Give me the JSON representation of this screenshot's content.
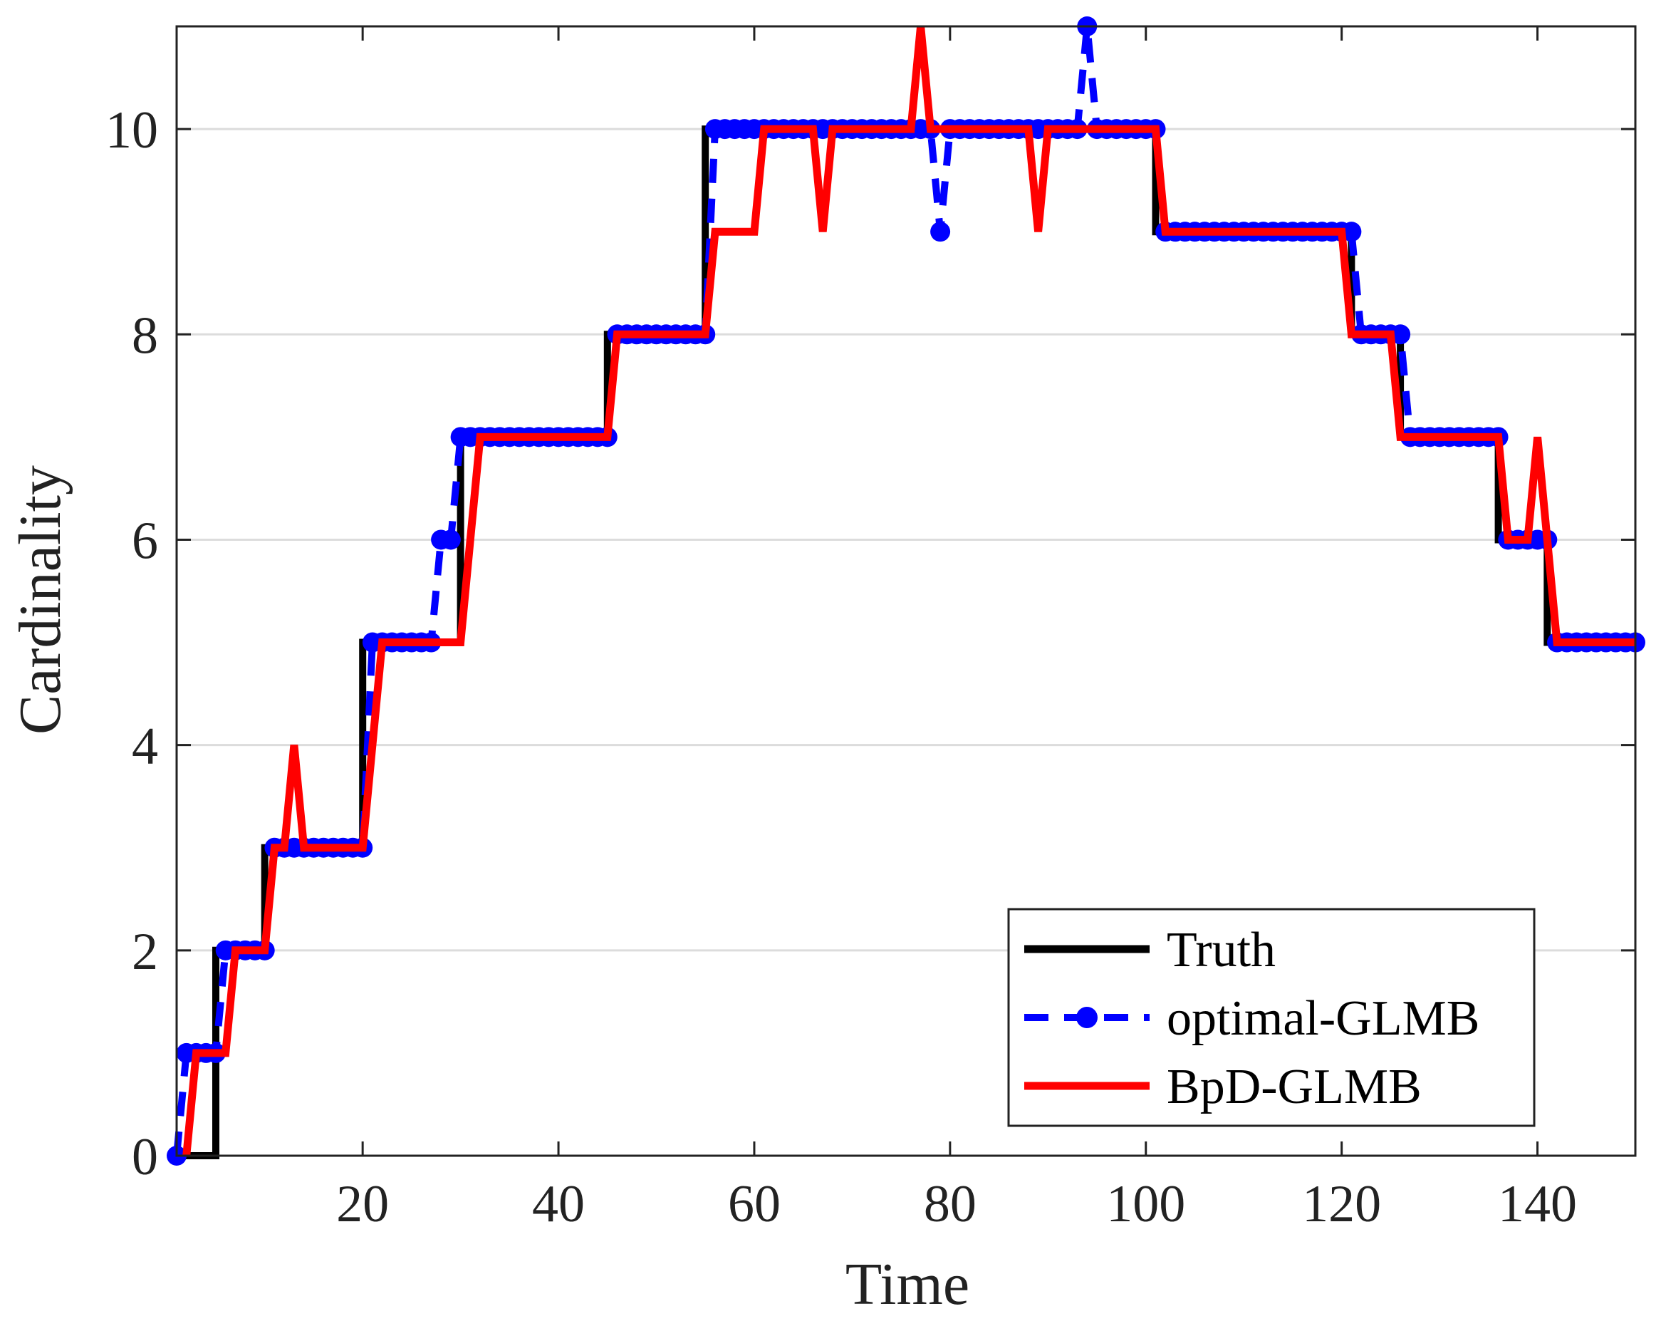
{
  "chart_data": {
    "type": "line",
    "title": "",
    "xlabel": "Time",
    "ylabel": "Cardinality",
    "xlim": [
      1,
      150
    ],
    "ylim": [
      0,
      11
    ],
    "xticks": [
      20,
      40,
      60,
      80,
      100,
      120,
      140
    ],
    "yticks": [
      0,
      2,
      4,
      6,
      8,
      10
    ],
    "grid": "horizontal",
    "legend_position": "bottom-right",
    "series": [
      {
        "name": "Truth",
        "color": "#000000",
        "style": "solid",
        "marker": "none",
        "x": [
          1,
          5,
          5,
          10,
          10,
          20,
          20,
          30,
          30,
          45,
          45,
          55,
          55,
          101,
          101,
          121,
          121,
          126,
          126,
          136,
          136,
          141,
          141,
          150
        ],
        "y": [
          0,
          0,
          2,
          2,
          3,
          3,
          5,
          5,
          7,
          7,
          8,
          8,
          10,
          10,
          9,
          9,
          8,
          8,
          7,
          7,
          6,
          6,
          5,
          5
        ]
      },
      {
        "name": "optimal-GLMB",
        "color": "#0000ff",
        "style": "dashed",
        "marker": "circle",
        "x": [
          1,
          2,
          3,
          4,
          5,
          6,
          7,
          8,
          9,
          10,
          11,
          12,
          13,
          14,
          15,
          16,
          17,
          18,
          19,
          20,
          21,
          22,
          23,
          24,
          25,
          26,
          27,
          28,
          29,
          30,
          31,
          32,
          33,
          34,
          35,
          36,
          37,
          38,
          39,
          40,
          41,
          42,
          43,
          44,
          45,
          46,
          47,
          48,
          49,
          50,
          51,
          52,
          53,
          54,
          55,
          56,
          57,
          58,
          59,
          60,
          61,
          62,
          63,
          64,
          65,
          66,
          67,
          68,
          69,
          70,
          71,
          72,
          73,
          74,
          75,
          76,
          77,
          78,
          79,
          80,
          81,
          82,
          83,
          84,
          85,
          86,
          87,
          88,
          89,
          90,
          91,
          92,
          93,
          94,
          95,
          96,
          97,
          98,
          99,
          100,
          101,
          102,
          103,
          104,
          105,
          106,
          107,
          108,
          109,
          110,
          111,
          112,
          113,
          114,
          115,
          116,
          117,
          118,
          119,
          120,
          121,
          122,
          123,
          124,
          125,
          126,
          127,
          128,
          129,
          130,
          131,
          132,
          133,
          134,
          135,
          136,
          137,
          138,
          139,
          140,
          141,
          142,
          143,
          144,
          145,
          146,
          147,
          148,
          149,
          150
        ],
        "y": [
          0,
          1,
          1,
          1,
          1,
          2,
          2,
          2,
          2,
          2,
          3,
          3,
          3,
          3,
          3,
          3,
          3,
          3,
          3,
          3,
          5,
          5,
          5,
          5,
          5,
          5,
          5,
          6,
          6,
          7,
          7,
          7,
          7,
          7,
          7,
          7,
          7,
          7,
          7,
          7,
          7,
          7,
          7,
          7,
          7,
          8,
          8,
          8,
          8,
          8,
          8,
          8,
          8,
          8,
          8,
          10,
          10,
          10,
          10,
          10,
          10,
          10,
          10,
          10,
          10,
          10,
          10,
          10,
          10,
          10,
          10,
          10,
          10,
          10,
          10,
          10,
          10,
          10,
          9,
          10,
          10,
          10,
          10,
          10,
          10,
          10,
          10,
          10,
          10,
          10,
          10,
          10,
          10,
          11,
          10,
          10,
          10,
          10,
          10,
          10,
          10,
          9,
          9,
          9,
          9,
          9,
          9,
          9,
          9,
          9,
          9,
          9,
          9,
          9,
          9,
          9,
          9,
          9,
          9,
          9,
          9,
          8,
          8,
          8,
          8,
          8,
          7,
          7,
          7,
          7,
          7,
          7,
          7,
          7,
          7,
          7,
          6,
          6,
          6,
          6,
          6,
          5,
          5,
          5,
          5,
          5,
          5,
          5,
          5,
          5
        ]
      },
      {
        "name": "BpD-GLMB",
        "color": "#ff0000",
        "style": "solid",
        "marker": "none",
        "x": [
          2,
          3,
          4,
          5,
          6,
          7,
          8,
          9,
          10,
          11,
          12,
          13,
          14,
          15,
          16,
          17,
          18,
          19,
          20,
          21,
          22,
          23,
          24,
          25,
          26,
          27,
          28,
          29,
          30,
          31,
          32,
          33,
          34,
          35,
          36,
          37,
          38,
          39,
          40,
          41,
          42,
          43,
          44,
          45,
          46,
          47,
          48,
          49,
          50,
          51,
          52,
          53,
          54,
          55,
          56,
          57,
          58,
          59,
          60,
          61,
          62,
          63,
          64,
          65,
          66,
          67,
          68,
          69,
          70,
          71,
          72,
          73,
          74,
          75,
          76,
          77,
          78,
          79,
          80,
          81,
          82,
          83,
          84,
          85,
          86,
          87,
          88,
          89,
          90,
          91,
          92,
          93,
          94,
          95,
          96,
          97,
          98,
          99,
          100,
          101,
          102,
          103,
          104,
          105,
          106,
          107,
          108,
          109,
          110,
          111,
          112,
          113,
          114,
          115,
          116,
          117,
          118,
          119,
          120,
          121,
          122,
          123,
          124,
          125,
          126,
          127,
          128,
          129,
          130,
          131,
          132,
          133,
          134,
          135,
          136,
          137,
          138,
          139,
          140,
          141,
          142,
          143,
          144,
          145,
          146,
          147,
          148,
          149,
          150
        ],
        "y": [
          0,
          1,
          1,
          1,
          1,
          2,
          2,
          2,
          2,
          3,
          3,
          4,
          3,
          3,
          3,
          3,
          3,
          3,
          3,
          4,
          5,
          5,
          5,
          5,
          5,
          5,
          5,
          5,
          5,
          6,
          7,
          7,
          7,
          7,
          7,
          7,
          7,
          7,
          7,
          7,
          7,
          7,
          7,
          7,
          8,
          8,
          8,
          8,
          8,
          8,
          8,
          8,
          8,
          8,
          9,
          9,
          9,
          9,
          9,
          10,
          10,
          10,
          10,
          10,
          10,
          9,
          10,
          10,
          10,
          10,
          10,
          10,
          10,
          10,
          10,
          11,
          10,
          10,
          10,
          10,
          10,
          10,
          10,
          10,
          10,
          10,
          10,
          9,
          10,
          10,
          10,
          10,
          10,
          10,
          10,
          10,
          10,
          10,
          10,
          10,
          9,
          9,
          9,
          9,
          9,
          9,
          9,
          9,
          9,
          9,
          9,
          9,
          9,
          9,
          9,
          9,
          9,
          9,
          9,
          8,
          8,
          8,
          8,
          8,
          7,
          7,
          7,
          7,
          7,
          7,
          7,
          7,
          7,
          7,
          7,
          6,
          6,
          6,
          7,
          6,
          5,
          5,
          5,
          5,
          5,
          5,
          5,
          5,
          5
        ]
      }
    ]
  }
}
